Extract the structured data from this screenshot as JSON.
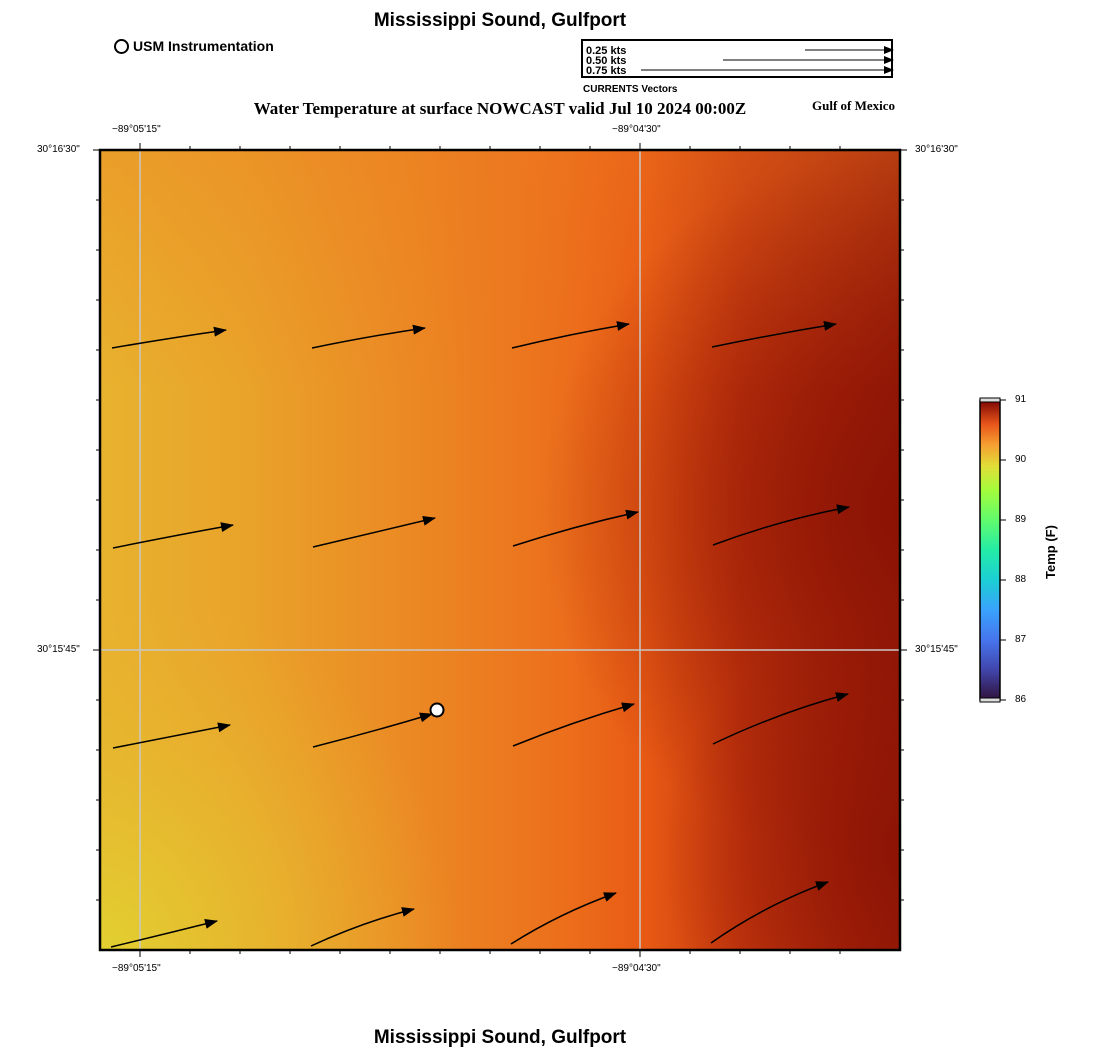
{
  "header": {
    "title": "Mississippi Sound, Gulfport",
    "subtitle": "Water Temperature at surface NOWCAST valid Jul 10 2024 00:00Z",
    "region": "Gulf of Mexico",
    "footer_title": "Mississippi Sound, Gulfport"
  },
  "legend": {
    "usm_label": "USM Instrumentation",
    "vector_scale": [
      "0.25 kts",
      "0.50 kts",
      "0.75 kts"
    ],
    "vector_caption": "CURRENTS Vectors"
  },
  "axes": {
    "top_ticks": [
      "−89°05'15\"",
      "−89°04'30\""
    ],
    "bottom_ticks": [
      "−89°05'15\"",
      "−89°04'30\""
    ],
    "left_ticks": [
      "30°16'30\"",
      "30°15'45\""
    ],
    "right_ticks": [
      "30°16'30\"",
      "30°15'45\""
    ]
  },
  "colorbar": {
    "title": "Temp (F)",
    "ticks": [
      "91",
      "90",
      "89",
      "88",
      "87",
      "86"
    ],
    "min": 86,
    "max": 91
  },
  "colors": {
    "warm_low": "#e6c830",
    "warm_mid": "#ea6418",
    "warm_high": "#941708",
    "grid": "#c0c0c0"
  }
}
